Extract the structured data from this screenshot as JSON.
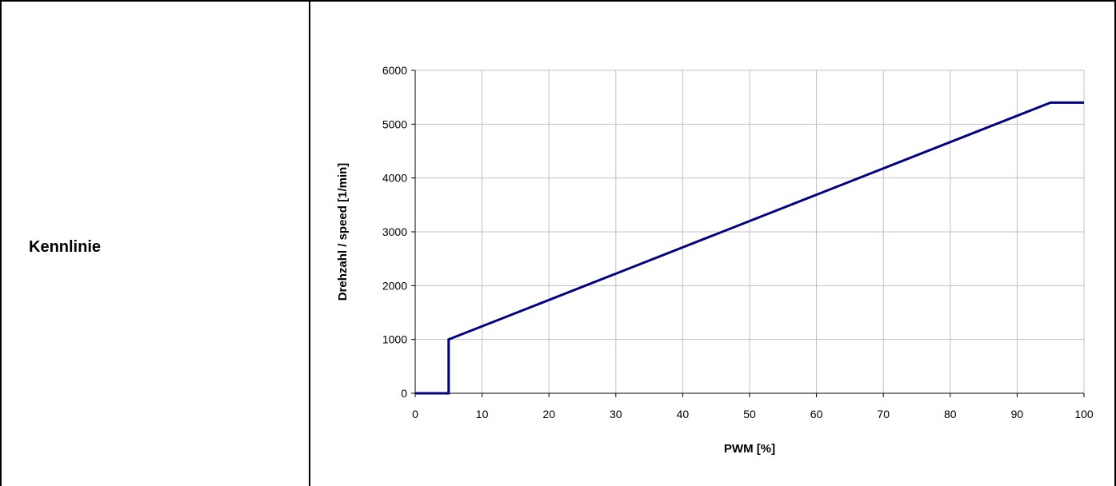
{
  "table": {
    "row_label": "Kennlinie"
  },
  "chart_data": {
    "type": "line",
    "title": "",
    "xlabel": "PWM [%]",
    "ylabel": "Drehzahl / speed [1/min]",
    "xlim": [
      0,
      100
    ],
    "ylim": [
      0,
      6000
    ],
    "xticks": [
      0,
      10,
      20,
      30,
      40,
      50,
      60,
      70,
      80,
      90,
      100
    ],
    "yticks": [
      0,
      1000,
      2000,
      3000,
      4000,
      5000,
      6000
    ],
    "grid": true,
    "legend": "none",
    "line_color": "#000080",
    "series": [
      {
        "x": [
          0,
          5,
          5,
          95,
          100
        ],
        "y": [
          0,
          0,
          1000,
          5400,
          5400
        ]
      }
    ]
  }
}
